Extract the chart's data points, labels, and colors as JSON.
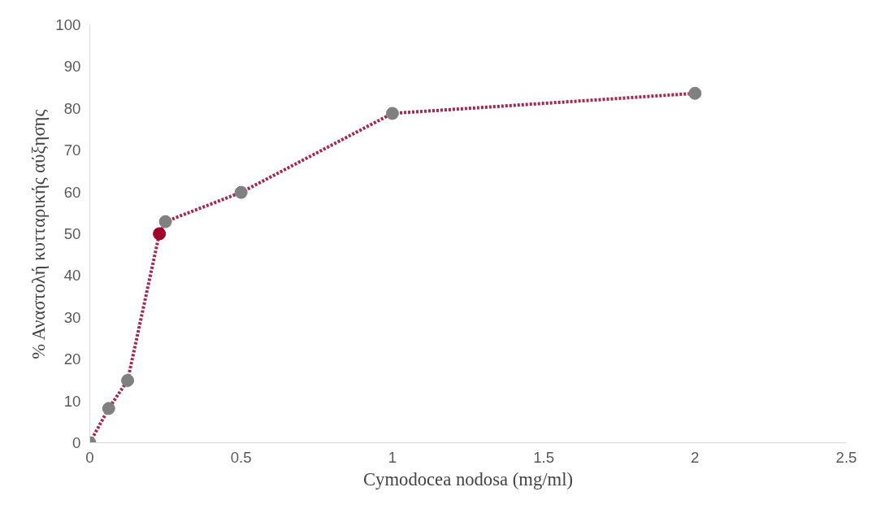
{
  "chart_data": {
    "type": "line",
    "xlabel": "Cymodocea nodosa (mg/ml)",
    "ylabel": "% Αναστολή κυτταρικής αύξησης",
    "xlim": [
      0,
      2.5
    ],
    "xticks": [
      0,
      0.5,
      1,
      1.5,
      2,
      2.5
    ],
    "ylim": [
      0,
      100
    ],
    "yticks": [
      0,
      10,
      20,
      30,
      40,
      50,
      60,
      70,
      80,
      90,
      100
    ],
    "grid": false,
    "series": [
      {
        "color": "#a3294f",
        "line_style": "dotted",
        "marker": "none",
        "x": [
          0,
          0.0625,
          0.125,
          0.23,
          0.25,
          0.5,
          1,
          2
        ],
        "values": [
          0,
          8.2,
          14.9,
          50,
          52.9,
          59.9,
          78.8,
          83.6
        ]
      },
      {
        "type": "scatter",
        "color": "#808080",
        "marker": "circle",
        "x": [
          0,
          0.0625,
          0.125,
          0.25,
          0.5,
          1,
          2
        ],
        "values": [
          0,
          8.2,
          14.9,
          52.9,
          59.9,
          78.8,
          83.6
        ]
      },
      {
        "type": "scatter",
        "color": "#a0002a",
        "marker": "circle",
        "x": [
          0.23
        ],
        "values": [
          50
        ]
      }
    ]
  }
}
